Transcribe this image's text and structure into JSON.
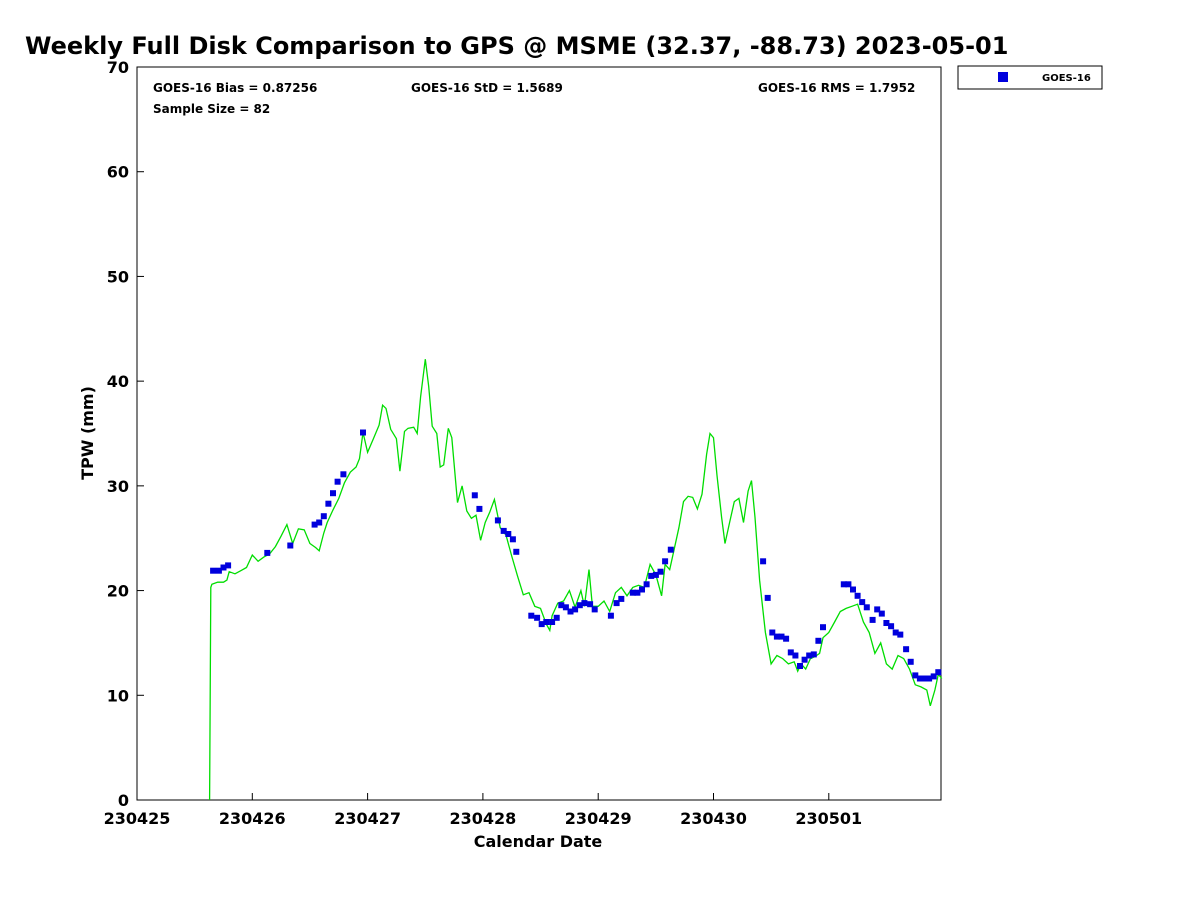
{
  "chart_data": {
    "type": "line+scatter",
    "title": "Weekly Full Disk Comparison to GPS @ MSME (32.37, -88.73) 2023-05-01",
    "xlabel": "Calendar Date",
    "ylabel": "TPW (mm)",
    "xlim": [
      0,
      7
    ],
    "ylim": [
      0,
      70
    ],
    "x_ticks": [
      {
        "value": 0,
        "label": "230425"
      },
      {
        "value": 1,
        "label": "230426"
      },
      {
        "value": 2,
        "label": "230427"
      },
      {
        "value": 3,
        "label": "230428"
      },
      {
        "value": 4,
        "label": "230429"
      },
      {
        "value": 5,
        "label": "230430"
      },
      {
        "value": 6,
        "label": "230501"
      }
    ],
    "y_ticks": [
      0,
      10,
      20,
      30,
      40,
      50,
      60,
      70
    ],
    "stats": {
      "bias": "GOES-16 Bias = 0.87256",
      "std": "GOES-16 StD = 1.5689",
      "rms": "GOES-16 RMS = 1.7952",
      "sample_size": "Sample Size = 82"
    },
    "legend": {
      "label": "GOES-16",
      "placement": "top-right outside"
    },
    "series": [
      {
        "name": "GPS",
        "kind": "line",
        "color": "#00dd00",
        "points": [
          [
            0.63,
            0
          ],
          [
            0.64,
            20.3
          ],
          [
            0.65,
            20.6
          ],
          [
            0.7,
            20.8
          ],
          [
            0.75,
            20.8
          ],
          [
            0.78,
            21.0
          ],
          [
            0.8,
            21.8
          ],
          [
            0.85,
            21.6
          ],
          [
            0.9,
            21.9
          ],
          [
            0.95,
            22.2
          ],
          [
            1.0,
            23.4
          ],
          [
            1.05,
            22.8
          ],
          [
            1.1,
            23.2
          ],
          [
            1.15,
            23.5
          ],
          [
            1.2,
            24.2
          ],
          [
            1.25,
            25.2
          ],
          [
            1.3,
            26.3
          ],
          [
            1.35,
            24.5
          ],
          [
            1.4,
            25.9
          ],
          [
            1.45,
            25.8
          ],
          [
            1.5,
            24.5
          ],
          [
            1.55,
            24.1
          ],
          [
            1.58,
            23.8
          ],
          [
            1.62,
            25.5
          ],
          [
            1.65,
            26.5
          ],
          [
            1.7,
            27.7
          ],
          [
            1.75,
            28.8
          ],
          [
            1.8,
            30.3
          ],
          [
            1.85,
            31.3
          ],
          [
            1.9,
            31.8
          ],
          [
            1.93,
            32.6
          ],
          [
            1.96,
            35.1
          ],
          [
            2.0,
            33.2
          ],
          [
            2.05,
            34.5
          ],
          [
            2.1,
            35.8
          ],
          [
            2.13,
            37.7
          ],
          [
            2.16,
            37.4
          ],
          [
            2.2,
            35.4
          ],
          [
            2.25,
            34.5
          ],
          [
            2.28,
            31.4
          ],
          [
            2.32,
            35.2
          ],
          [
            2.35,
            35.5
          ],
          [
            2.4,
            35.6
          ],
          [
            2.43,
            35.0
          ],
          [
            2.46,
            38.5
          ],
          [
            2.5,
            42.1
          ],
          [
            2.53,
            39.5
          ],
          [
            2.56,
            35.7
          ],
          [
            2.6,
            35.0
          ],
          [
            2.63,
            31.8
          ],
          [
            2.66,
            32.0
          ],
          [
            2.7,
            35.5
          ],
          [
            2.73,
            34.6
          ],
          [
            2.78,
            28.4
          ],
          [
            2.82,
            30.0
          ],
          [
            2.86,
            27.6
          ],
          [
            2.9,
            26.9
          ],
          [
            2.94,
            27.2
          ],
          [
            2.98,
            24.8
          ],
          [
            3.02,
            26.5
          ],
          [
            3.06,
            27.5
          ],
          [
            3.1,
            28.7
          ],
          [
            3.15,
            26.0
          ],
          [
            3.2,
            25.3
          ],
          [
            3.25,
            23.3
          ],
          [
            3.3,
            21.4
          ],
          [
            3.35,
            19.6
          ],
          [
            3.4,
            19.8
          ],
          [
            3.45,
            18.5
          ],
          [
            3.5,
            18.3
          ],
          [
            3.55,
            16.8
          ],
          [
            3.58,
            16.2
          ],
          [
            3.6,
            17.6
          ],
          [
            3.65,
            18.8
          ],
          [
            3.7,
            19.0
          ],
          [
            3.75,
            20.0
          ],
          [
            3.8,
            18.4
          ],
          [
            3.85,
            20.0
          ],
          [
            3.88,
            18.5
          ],
          [
            3.92,
            22.0
          ],
          [
            3.95,
            18.5
          ],
          [
            4.0,
            18.5
          ],
          [
            4.05,
            19.0
          ],
          [
            4.1,
            18.0
          ],
          [
            4.15,
            19.8
          ],
          [
            4.2,
            20.3
          ],
          [
            4.25,
            19.5
          ],
          [
            4.3,
            20.3
          ],
          [
            4.35,
            20.5
          ],
          [
            4.4,
            20.3
          ],
          [
            4.45,
            22.5
          ],
          [
            4.5,
            21.5
          ],
          [
            4.55,
            19.5
          ],
          [
            4.58,
            22.5
          ],
          [
            4.62,
            22.0
          ],
          [
            4.66,
            24.0
          ],
          [
            4.7,
            26.0
          ],
          [
            4.74,
            28.5
          ],
          [
            4.78,
            29.0
          ],
          [
            4.82,
            28.9
          ],
          [
            4.86,
            27.8
          ],
          [
            4.9,
            29.2
          ],
          [
            4.94,
            33.0
          ],
          [
            4.97,
            35.0
          ],
          [
            5.0,
            34.6
          ],
          [
            5.03,
            31.0
          ],
          [
            5.07,
            27.0
          ],
          [
            5.1,
            24.5
          ],
          [
            5.14,
            26.5
          ],
          [
            5.18,
            28.5
          ],
          [
            5.22,
            28.8
          ],
          [
            5.26,
            26.5
          ],
          [
            5.3,
            29.5
          ],
          [
            5.33,
            30.5
          ],
          [
            5.36,
            27.0
          ],
          [
            5.4,
            21.0
          ],
          [
            5.45,
            16.0
          ],
          [
            5.5,
            13.0
          ],
          [
            5.55,
            13.8
          ],
          [
            5.6,
            13.5
          ],
          [
            5.65,
            13.0
          ],
          [
            5.7,
            13.2
          ],
          [
            5.73,
            12.3
          ],
          [
            5.76,
            13.0
          ],
          [
            5.8,
            12.5
          ],
          [
            5.84,
            13.5
          ],
          [
            5.88,
            13.7
          ],
          [
            5.92,
            14.0
          ],
          [
            5.95,
            15.5
          ],
          [
            6.0,
            16.0
          ],
          [
            6.05,
            17.0
          ],
          [
            6.1,
            18.0
          ],
          [
            6.15,
            18.3
          ],
          [
            6.2,
            18.5
          ],
          [
            6.25,
            18.7
          ],
          [
            6.3,
            17.0
          ],
          [
            6.35,
            16.0
          ],
          [
            6.4,
            14.0
          ],
          [
            6.45,
            15.0
          ],
          [
            6.5,
            13.0
          ],
          [
            6.55,
            12.5
          ],
          [
            6.6,
            13.8
          ],
          [
            6.65,
            13.5
          ],
          [
            6.7,
            12.5
          ],
          [
            6.75,
            11.0
          ],
          [
            6.8,
            10.8
          ],
          [
            6.85,
            10.5
          ],
          [
            6.88,
            9.0
          ],
          [
            6.92,
            10.5
          ],
          [
            6.95,
            12.0
          ],
          [
            6.98,
            11.6
          ]
        ]
      },
      {
        "name": "GOES-16",
        "kind": "scatter",
        "color": "#0000dd",
        "points": [
          [
            0.66,
            21.9
          ],
          [
            0.71,
            21.9
          ],
          [
            0.75,
            22.2
          ],
          [
            0.79,
            22.4
          ],
          [
            1.13,
            23.6
          ],
          [
            1.33,
            24.3
          ],
          [
            1.54,
            26.3
          ],
          [
            1.58,
            26.5
          ],
          [
            1.62,
            27.1
          ],
          [
            1.66,
            28.3
          ],
          [
            1.7,
            29.3
          ],
          [
            1.74,
            30.4
          ],
          [
            1.79,
            31.1
          ],
          [
            1.96,
            35.1
          ],
          [
            2.93,
            29.1
          ],
          [
            2.97,
            27.8
          ],
          [
            3.13,
            26.7
          ],
          [
            3.18,
            25.7
          ],
          [
            3.22,
            25.4
          ],
          [
            3.26,
            24.9
          ],
          [
            3.29,
            23.7
          ],
          [
            3.42,
            17.6
          ],
          [
            3.47,
            17.4
          ],
          [
            3.51,
            16.8
          ],
          [
            3.55,
            17.0
          ],
          [
            3.6,
            17.0
          ],
          [
            3.64,
            17.4
          ],
          [
            3.68,
            18.6
          ],
          [
            3.72,
            18.4
          ],
          [
            3.76,
            18.0
          ],
          [
            3.8,
            18.2
          ],
          [
            3.84,
            18.6
          ],
          [
            3.88,
            18.8
          ],
          [
            3.93,
            18.7
          ],
          [
            3.97,
            18.2
          ],
          [
            4.11,
            17.6
          ],
          [
            4.16,
            18.8
          ],
          [
            4.2,
            19.2
          ],
          [
            4.3,
            19.8
          ],
          [
            4.34,
            19.8
          ],
          [
            4.38,
            20.1
          ],
          [
            4.42,
            20.6
          ],
          [
            4.46,
            21.4
          ],
          [
            4.5,
            21.5
          ],
          [
            4.54,
            21.8
          ],
          [
            4.58,
            22.8
          ],
          [
            4.63,
            23.9
          ],
          [
            5.43,
            22.8
          ],
          [
            5.47,
            19.3
          ],
          [
            5.51,
            16.0
          ],
          [
            5.55,
            15.6
          ],
          [
            5.59,
            15.6
          ],
          [
            5.63,
            15.4
          ],
          [
            5.67,
            14.1
          ],
          [
            5.71,
            13.8
          ],
          [
            5.75,
            12.8
          ],
          [
            5.79,
            13.4
          ],
          [
            5.83,
            13.8
          ],
          [
            5.87,
            13.9
          ],
          [
            5.91,
            15.2
          ],
          [
            5.95,
            16.5
          ],
          [
            6.13,
            20.6
          ],
          [
            6.17,
            20.6
          ],
          [
            6.21,
            20.1
          ],
          [
            6.25,
            19.5
          ],
          [
            6.29,
            18.9
          ],
          [
            6.33,
            18.4
          ],
          [
            6.38,
            17.2
          ],
          [
            6.42,
            18.2
          ],
          [
            6.46,
            17.8
          ],
          [
            6.5,
            16.9
          ],
          [
            6.54,
            16.6
          ],
          [
            6.58,
            16.0
          ],
          [
            6.62,
            15.8
          ],
          [
            6.67,
            14.4
          ],
          [
            6.71,
            13.2
          ],
          [
            6.75,
            11.9
          ],
          [
            6.79,
            11.6
          ],
          [
            6.83,
            11.6
          ],
          [
            6.87,
            11.6
          ],
          [
            6.91,
            11.8
          ],
          [
            6.95,
            12.2
          ]
        ]
      }
    ]
  }
}
